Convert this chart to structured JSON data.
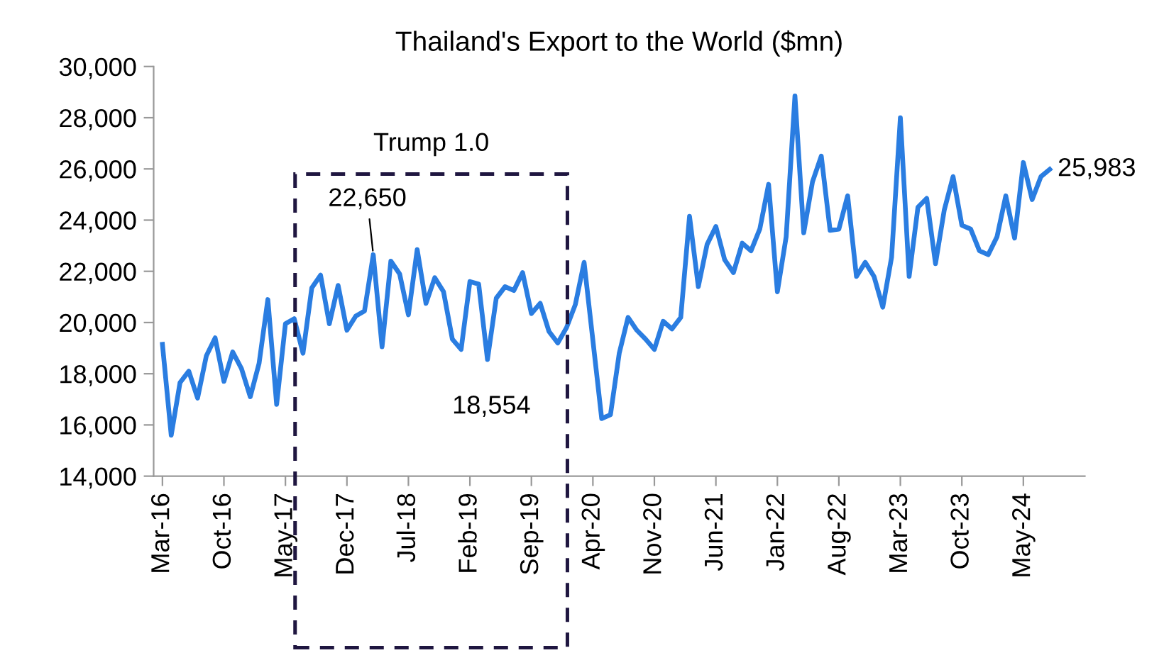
{
  "chart_data": {
    "type": "line",
    "title": "Thailand's Export to the World ($mn)",
    "categories": [
      "Mar-16",
      null,
      null,
      null,
      null,
      null,
      null,
      "Oct-16",
      null,
      null,
      null,
      null,
      null,
      null,
      "May-17",
      null,
      null,
      null,
      null,
      null,
      null,
      "Dec-17",
      null,
      null,
      null,
      null,
      null,
      null,
      "Jul-18",
      null,
      null,
      null,
      null,
      null,
      null,
      "Feb-19",
      null,
      null,
      null,
      null,
      null,
      null,
      "Sep-19",
      null,
      null,
      null,
      null,
      null,
      null,
      "Apr-20",
      null,
      null,
      null,
      null,
      null,
      null,
      "Nov-20",
      null,
      null,
      null,
      null,
      null,
      null,
      "Jun-21",
      null,
      null,
      null,
      null,
      null,
      null,
      "Jan-22",
      null,
      null,
      null,
      null,
      null,
      null,
      "Aug-22",
      null,
      null,
      null,
      null,
      null,
      null,
      "Mar-23",
      null,
      null,
      null,
      null,
      null,
      null,
      "Oct-23",
      null,
      null,
      null,
      null,
      null,
      null,
      "May-24",
      null,
      null,
      null
    ],
    "series": [
      {
        "color": "#2a7de1",
        "values": [
          19150,
          15600,
          17650,
          18100,
          17050,
          18700,
          19400,
          17700,
          18850,
          18200,
          17100,
          18400,
          20900,
          16800,
          19950,
          20150,
          18800,
          21350,
          21850,
          19950,
          21450,
          19700,
          20250,
          20450,
          22650,
          19050,
          22400,
          21900,
          20300,
          22850,
          20750,
          21750,
          21200,
          19350,
          18950,
          21600,
          21500,
          18554,
          20950,
          21400,
          21250,
          21950,
          20350,
          20750,
          19650,
          19200,
          19800,
          20700,
          22350,
          19300,
          16250,
          16400,
          18800,
          20200,
          19700,
          19350,
          18950,
          20050,
          19750,
          20200,
          24150,
          21400,
          23050,
          23750,
          22450,
          21950,
          23100,
          22800,
          23650,
          25400,
          21200,
          23350,
          28850,
          23500,
          25500,
          26500,
          23600,
          23650,
          24950,
          21800,
          22350,
          21800,
          20600,
          22550,
          28000,
          21800,
          24500,
          24850,
          22300,
          24400,
          25700,
          23800,
          23650,
          22800,
          22650,
          23350,
          24950,
          23300,
          26250,
          24800,
          25700,
          25983
        ],
        "value_labels": [
          null,
          null,
          null,
          null,
          null,
          null,
          null,
          null,
          null,
          null,
          null,
          null,
          null,
          null,
          null,
          null,
          null,
          null,
          null,
          null,
          null,
          null,
          null,
          null,
          "22,650",
          null,
          null,
          null,
          null,
          null,
          null,
          null,
          null,
          null,
          null,
          null,
          null,
          "18,554",
          null,
          null,
          null,
          null,
          null,
          null,
          null,
          null,
          null,
          null,
          null,
          null,
          null,
          null,
          null,
          null,
          null,
          null,
          null,
          null,
          null,
          null,
          null,
          null,
          null,
          null,
          null,
          null,
          null,
          null,
          null,
          null,
          null,
          null,
          null,
          null,
          null,
          null,
          null,
          null,
          null,
          null,
          null,
          null,
          null,
          null,
          null,
          null,
          null,
          null,
          null,
          null,
          null,
          null,
          null,
          null,
          null,
          null,
          null,
          null,
          null,
          null,
          null,
          "25,983"
        ]
      }
    ],
    "ylim": [
      14000,
      30000
    ],
    "yticks": [
      {
        "value": 14000,
        "label": "14,000"
      },
      {
        "value": 16000,
        "label": "16,000"
      },
      {
        "value": 18000,
        "label": "18,000"
      },
      {
        "value": 20000,
        "label": "20,000"
      },
      {
        "value": 22000,
        "label": "22,000"
      },
      {
        "value": 24000,
        "label": "24,000"
      },
      {
        "value": 26000,
        "label": "26,000"
      },
      {
        "value": 28000,
        "label": "28,000"
      },
      {
        "value": 30000,
        "label": "30,000"
      }
    ],
    "annotations": [
      "Trump 1.0"
    ],
    "grid": false,
    "legend": false,
    "marker": "none",
    "line_style": "solid"
  }
}
